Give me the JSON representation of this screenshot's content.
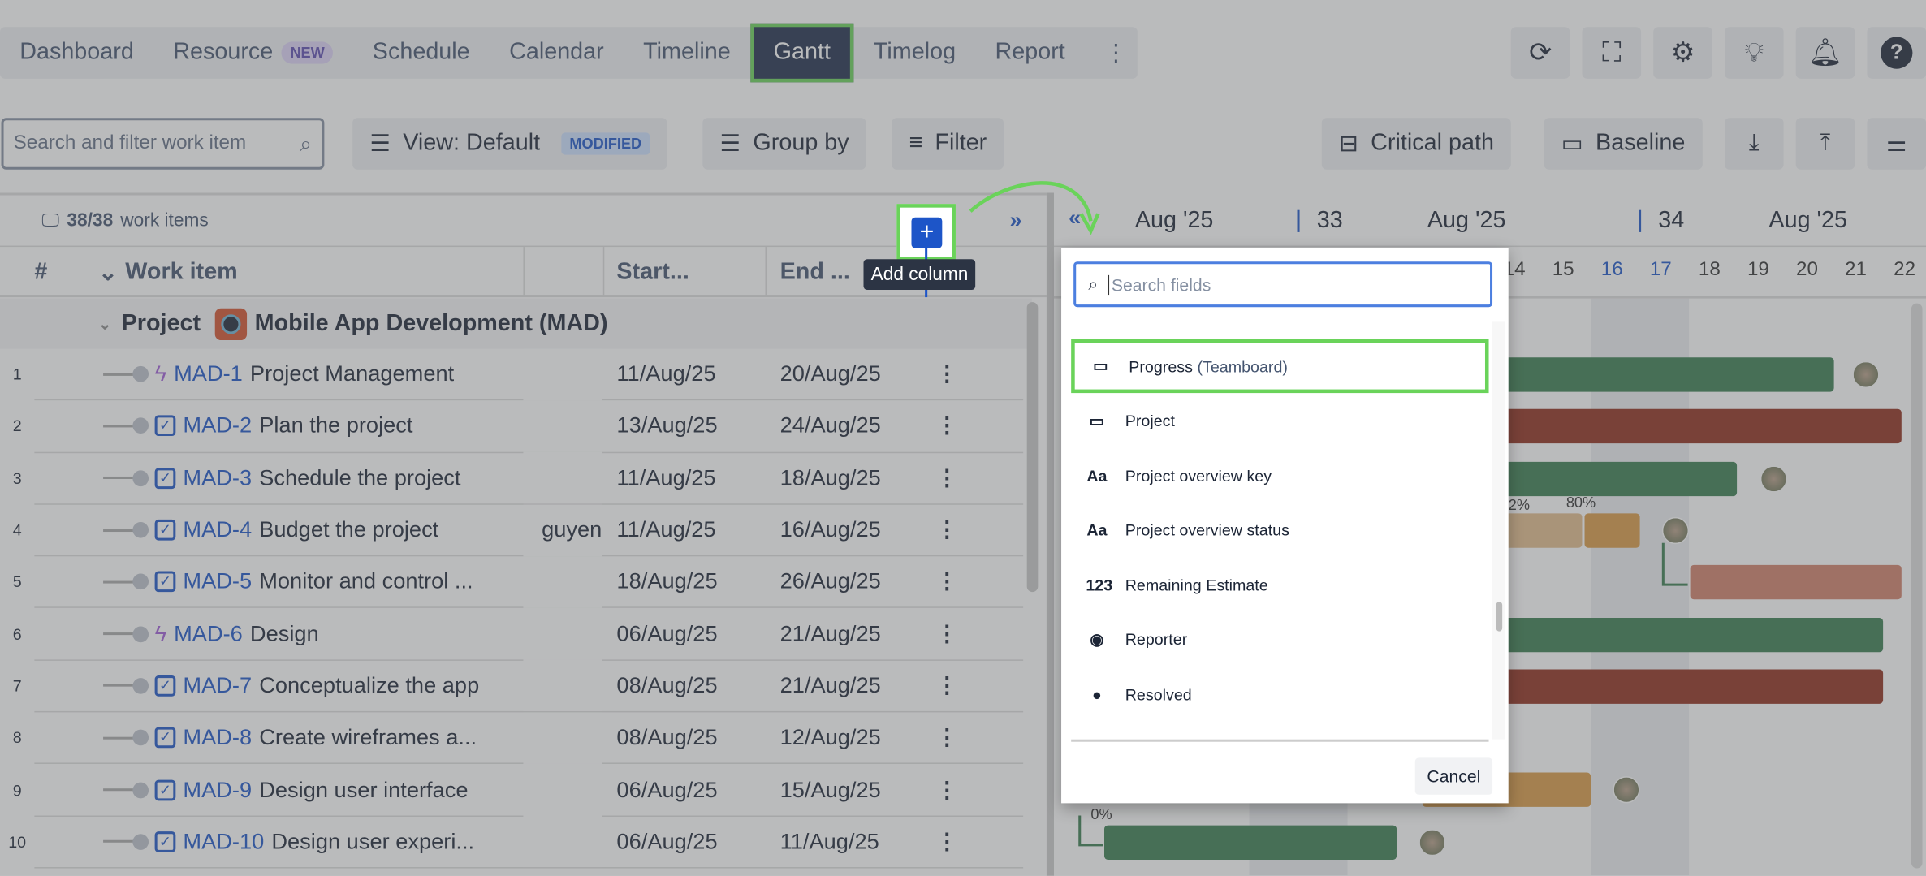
{
  "nav": {
    "tabs": [
      "Dashboard",
      "Resource",
      "Schedule",
      "Calendar",
      "Timeline",
      "Gantt",
      "Timelog",
      "Report"
    ],
    "new_badge": "NEW",
    "active": "Gantt"
  },
  "header_icons": [
    "refresh-icon",
    "fullscreen-icon",
    "gear-icon",
    "lightbulb-icon",
    "bell-icon",
    "help-icon"
  ],
  "toolbar": {
    "search_placeholder": "Search and filter work item",
    "view": "View: Default",
    "modified": "MODIFIED",
    "group_by": "Group by",
    "filter": "Filter",
    "critical_path": "Critical path",
    "baseline": "Baseline"
  },
  "list": {
    "count": "38/38",
    "count_label": "work items",
    "col_num": "#",
    "col_work": "Work item",
    "col_start": "Start...",
    "col_end": "End ...",
    "add_column_tooltip": "Add column",
    "group_label": "Project",
    "group_name": "Mobile App Development (MAD)",
    "rows": [
      {
        "n": "1",
        "key": "MAD-1",
        "title": "Project Management",
        "type": "epic",
        "extra": "",
        "start": "11/Aug/25",
        "end": "20/Aug/25"
      },
      {
        "n": "2",
        "key": "MAD-2",
        "title": "Plan the project",
        "type": "task",
        "extra": "",
        "start": "13/Aug/25",
        "end": "24/Aug/25"
      },
      {
        "n": "3",
        "key": "MAD-3",
        "title": "Schedule the project",
        "type": "task",
        "extra": "",
        "start": "11/Aug/25",
        "end": "18/Aug/25"
      },
      {
        "n": "4",
        "key": "MAD-4",
        "title": "Budget the project",
        "type": "task",
        "extra": "guyen",
        "start": "11/Aug/25",
        "end": "16/Aug/25"
      },
      {
        "n": "5",
        "key": "MAD-5",
        "title": "Monitor and control ...",
        "type": "task",
        "extra": "",
        "start": "18/Aug/25",
        "end": "26/Aug/25"
      },
      {
        "n": "6",
        "key": "MAD-6",
        "title": "Design",
        "type": "epic",
        "extra": "",
        "start": "06/Aug/25",
        "end": "21/Aug/25"
      },
      {
        "n": "7",
        "key": "MAD-7",
        "title": "Conceptualize the app",
        "type": "task",
        "extra": "",
        "start": "08/Aug/25",
        "end": "21/Aug/25"
      },
      {
        "n": "8",
        "key": "MAD-8",
        "title": "Create wireframes a...",
        "type": "task",
        "extra": "",
        "start": "08/Aug/25",
        "end": "12/Aug/25"
      },
      {
        "n": "9",
        "key": "MAD-9",
        "title": "Design user interface",
        "type": "task",
        "extra": "",
        "start": "06/Aug/25",
        "end": "15/Aug/25"
      },
      {
        "n": "10",
        "key": "MAD-10",
        "title": "Design user experi...",
        "type": "task",
        "extra": "",
        "start": "06/Aug/25",
        "end": "11/Aug/25"
      }
    ]
  },
  "timeline": {
    "months": [
      "Aug '25",
      "Aug '25",
      "Aug '25"
    ],
    "weeks": [
      "33",
      "34"
    ],
    "days": [
      "14",
      "15",
      "16",
      "17",
      "18",
      "19",
      "20",
      "21",
      "22"
    ],
    "pct_labels": [
      "2%",
      "80%",
      "0%"
    ]
  },
  "popup": {
    "search_placeholder": "Search fields",
    "items": [
      {
        "icon": "progress-icon",
        "label": "Progress",
        "suffix": "(Teamboard)"
      },
      {
        "icon": "progress-icon",
        "label": "Project",
        "suffix": ""
      },
      {
        "icon": "text-field-icon",
        "label": "Project overview key",
        "suffix": ""
      },
      {
        "icon": "text-field-icon",
        "label": "Project overview status",
        "suffix": ""
      },
      {
        "icon": "number-field-icon",
        "label": "Remaining Estimate",
        "suffix": ""
      },
      {
        "icon": "user-icon",
        "label": "Reporter",
        "suffix": ""
      },
      {
        "icon": "clock-icon",
        "label": "Resolved",
        "suffix": ""
      }
    ],
    "cancel": "Cancel"
  },
  "colors": {
    "highlight": "#6ad35a",
    "accent": "#1d55c8",
    "green": "#3a7d50",
    "red": "#8f2d1c",
    "orange": "#d99a45",
    "tan": "#e2bc8c",
    "salmon": "#d1806a"
  }
}
